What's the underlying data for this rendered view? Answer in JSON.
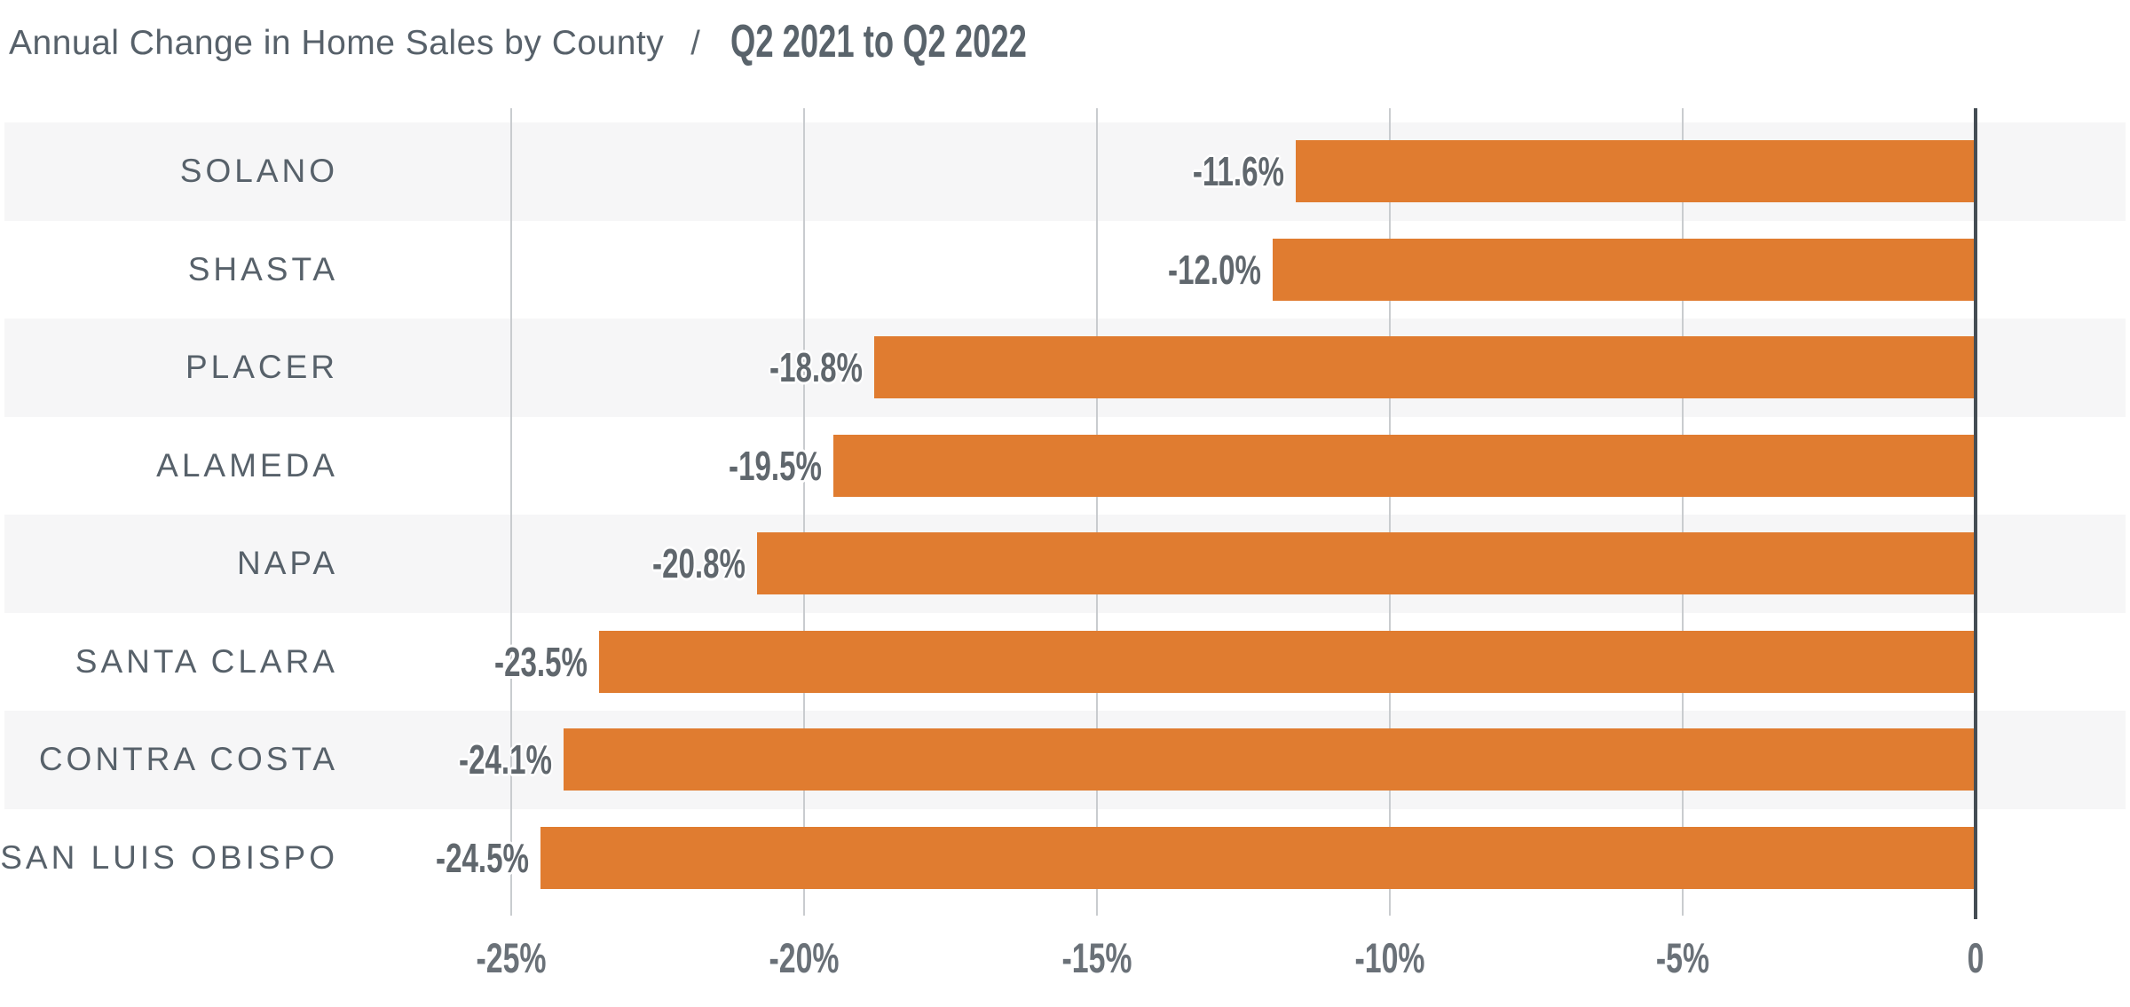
{
  "title": {
    "main": "Annual Change in Home Sales by County",
    "separator": "/",
    "period": "Q2 2021 to Q2 2022"
  },
  "chart_data": {
    "type": "bar",
    "orientation": "horizontal",
    "title": "Annual Change in Home Sales by County / Q2 2021 to Q2 2022",
    "xlabel": "",
    "ylabel": "",
    "categories": [
      "SOLANO",
      "SHASTA",
      "PLACER",
      "ALAMEDA",
      "NAPA",
      "SANTA CLARA",
      "CONTRA COSTA",
      "SAN LUIS OBISPO"
    ],
    "values": [
      -11.6,
      -12.0,
      -18.8,
      -19.5,
      -20.8,
      -23.5,
      -24.1,
      -24.5
    ],
    "value_labels": [
      "-11.6%",
      "-12.0%",
      "-18.8%",
      "-19.5%",
      "-20.8%",
      "-23.5%",
      "-24.1%",
      "-24.5%"
    ],
    "x_ticks": [
      -25,
      -20,
      -15,
      -10,
      -5,
      0
    ],
    "x_tick_labels": [
      "-25%",
      "-20%",
      "-15%",
      "-10%",
      "-5%",
      "0"
    ],
    "xlim": [
      -25,
      0
    ],
    "grid": true,
    "legend": "none",
    "bar_color": "#e07c30",
    "row_band_color_odd": "#f6f6f7",
    "row_band_color_even": "#ffffff",
    "gridline_color": "#c9cccf",
    "zero_axis_color": "#454d54",
    "value_label_color": "#60676d",
    "category_label_color": "#57616a",
    "tick_label_color": "#6a7178",
    "title_color": "#57616a"
  }
}
